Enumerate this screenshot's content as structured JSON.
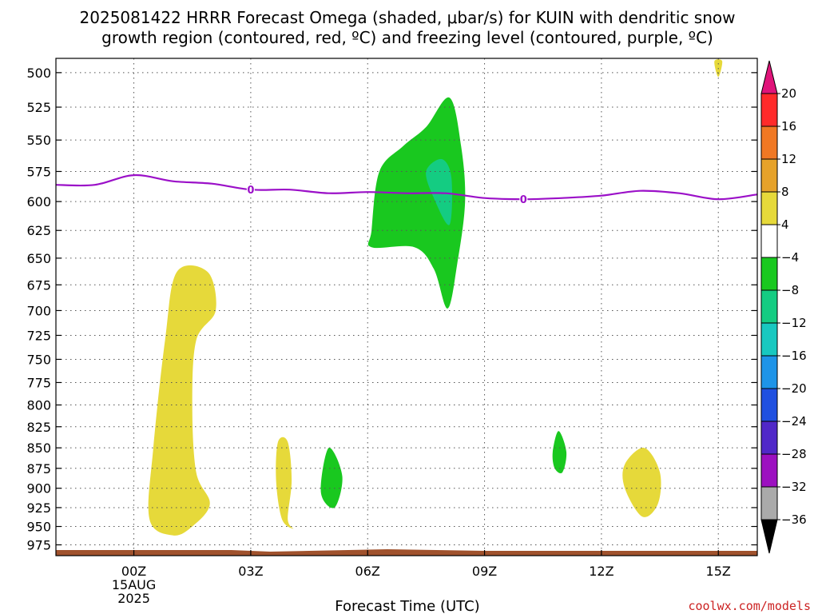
{
  "chart_data": {
    "type": "contour",
    "title_line1": "2025081422 HRRR Forecast Omega (shaded, μbar/s) for KUIN with dendritic snow",
    "title_line2": "growth region (contoured, red, ºC) and freezing level (contoured, purple, ºC)",
    "xlabel": "Forecast Time (UTC)",
    "x_ticks": [
      {
        "hour": 0,
        "label": "00Z",
        "date": "15AUG",
        "year": "2025"
      },
      {
        "hour": 3,
        "label": "03Z"
      },
      {
        "hour": 6,
        "label": "06Z"
      },
      {
        "hour": 9,
        "label": "09Z"
      },
      {
        "hour": 12,
        "label": "12Z"
      },
      {
        "hour": 15,
        "label": "15Z"
      }
    ],
    "xlim": [
      -2,
      16
    ],
    "y_ticks": [
      500,
      525,
      550,
      575,
      600,
      625,
      650,
      675,
      700,
      725,
      750,
      775,
      800,
      825,
      850,
      875,
      900,
      925,
      950,
      975
    ],
    "ylim": [
      490,
      990
    ],
    "y_scale": "log-pressure",
    "grid": true,
    "colorbar": {
      "labels": [
        "20",
        "16",
        "12",
        "8",
        "4",
        "−4",
        "−8",
        "−12",
        "−16",
        "−20",
        "−24",
        "−28",
        "−32",
        "−36"
      ],
      "bins": [
        {
          "color": "#ff2a2a"
        },
        {
          "color": "#f07824"
        },
        {
          "color": "#e6a22a"
        },
        {
          "color": "#e6d93a"
        },
        {
          "color": "#ffffff"
        },
        {
          "color": "#19c81f"
        },
        {
          "color": "#14cc82"
        },
        {
          "color": "#18c8c0"
        },
        {
          "color": "#1e94e8"
        },
        {
          "color": "#2050e0"
        },
        {
          "color": "#5028c8"
        },
        {
          "color": "#9c10c0"
        },
        {
          "color": "#aaaaaa"
        }
      ],
      "top_color": "#e0147a",
      "bottom_color": "#000000"
    },
    "freezing_level": {
      "label": "0",
      "color": "#9b10c8",
      "points": [
        [
          -2,
          586
        ],
        [
          -1,
          586
        ],
        [
          0,
          578
        ],
        [
          1,
          583
        ],
        [
          2,
          585
        ],
        [
          3,
          590
        ],
        [
          4,
          590
        ],
        [
          5,
          593
        ],
        [
          6,
          592
        ],
        [
          7,
          593
        ],
        [
          8,
          593
        ],
        [
          9,
          597
        ],
        [
          10,
          598
        ],
        [
          11,
          597
        ],
        [
          12,
          595
        ],
        [
          13,
          591
        ],
        [
          14,
          593
        ],
        [
          15,
          598
        ],
        [
          16,
          594
        ]
      ],
      "label_positions": [
        [
          3,
          590
        ],
        [
          10,
          598
        ]
      ]
    },
    "omega_regions": [
      {
        "value_range": "4 to 8",
        "color": "#e6d93a",
        "points": [
          [
            1.1,
            663
          ],
          [
            1.9,
            663
          ],
          [
            2.1,
            700
          ],
          [
            1.6,
            730
          ],
          [
            1.5,
            800
          ],
          [
            1.6,
            880
          ],
          [
            1.95,
            920
          ],
          [
            1.5,
            950
          ],
          [
            1.0,
            962
          ],
          [
            0.4,
            940
          ],
          [
            0.5,
            850
          ],
          [
            0.8,
            730
          ]
        ]
      },
      {
        "value_range": "4 to 8",
        "color": "#e6d93a",
        "points": [
          [
            3.7,
            843
          ],
          [
            3.95,
            843
          ],
          [
            4.05,
            890
          ],
          [
            3.95,
            940
          ],
          [
            4.1,
            953
          ],
          [
            3.8,
            940
          ],
          [
            3.65,
            890
          ]
        ]
      },
      {
        "value_range": "4 to 8",
        "color": "#e6d93a",
        "points": [
          [
            13.1,
            850
          ],
          [
            13.5,
            880
          ],
          [
            13.45,
            920
          ],
          [
            13.05,
            937
          ],
          [
            12.6,
            900
          ],
          [
            12.6,
            870
          ]
        ]
      },
      {
        "value_range": "4 to 8",
        "color": "#e6d93a",
        "points": [
          [
            14.9,
            492
          ],
          [
            15.1,
            492
          ],
          [
            15.0,
            503
          ]
        ]
      },
      {
        "value_range": "-4 to -8",
        "color": "#19c81f",
        "points": [
          [
            8.1,
            518
          ],
          [
            8.4,
            555
          ],
          [
            8.5,
            600
          ],
          [
            8.3,
            655
          ],
          [
            8.05,
            698
          ],
          [
            7.7,
            660
          ],
          [
            7.2,
            640
          ],
          [
            6.1,
            640
          ],
          [
            6.1,
            625
          ],
          [
            6.3,
            575
          ],
          [
            6.9,
            555
          ],
          [
            7.5,
            540
          ]
        ]
      },
      {
        "value_range": "-4 to -8",
        "color": "#19c81f",
        "points": [
          [
            5.0,
            850
          ],
          [
            5.35,
            885
          ],
          [
            5.15,
            925
          ],
          [
            4.8,
            905
          ]
        ]
      },
      {
        "value_range": "-4 to -8",
        "color": "#19c81f",
        "points": [
          [
            10.9,
            830
          ],
          [
            11.1,
            855
          ],
          [
            11.0,
            880
          ],
          [
            10.8,
            875
          ],
          [
            10.75,
            855
          ]
        ]
      },
      {
        "value_range": "-8 to -12",
        "color": "#14cc82",
        "points": [
          [
            7.9,
            565
          ],
          [
            8.15,
            580
          ],
          [
            8.1,
            620
          ],
          [
            7.7,
            597
          ],
          [
            7.5,
            575
          ]
        ]
      }
    ],
    "ground_color": "#a0522d"
  },
  "credit": "coolwx.com/models"
}
